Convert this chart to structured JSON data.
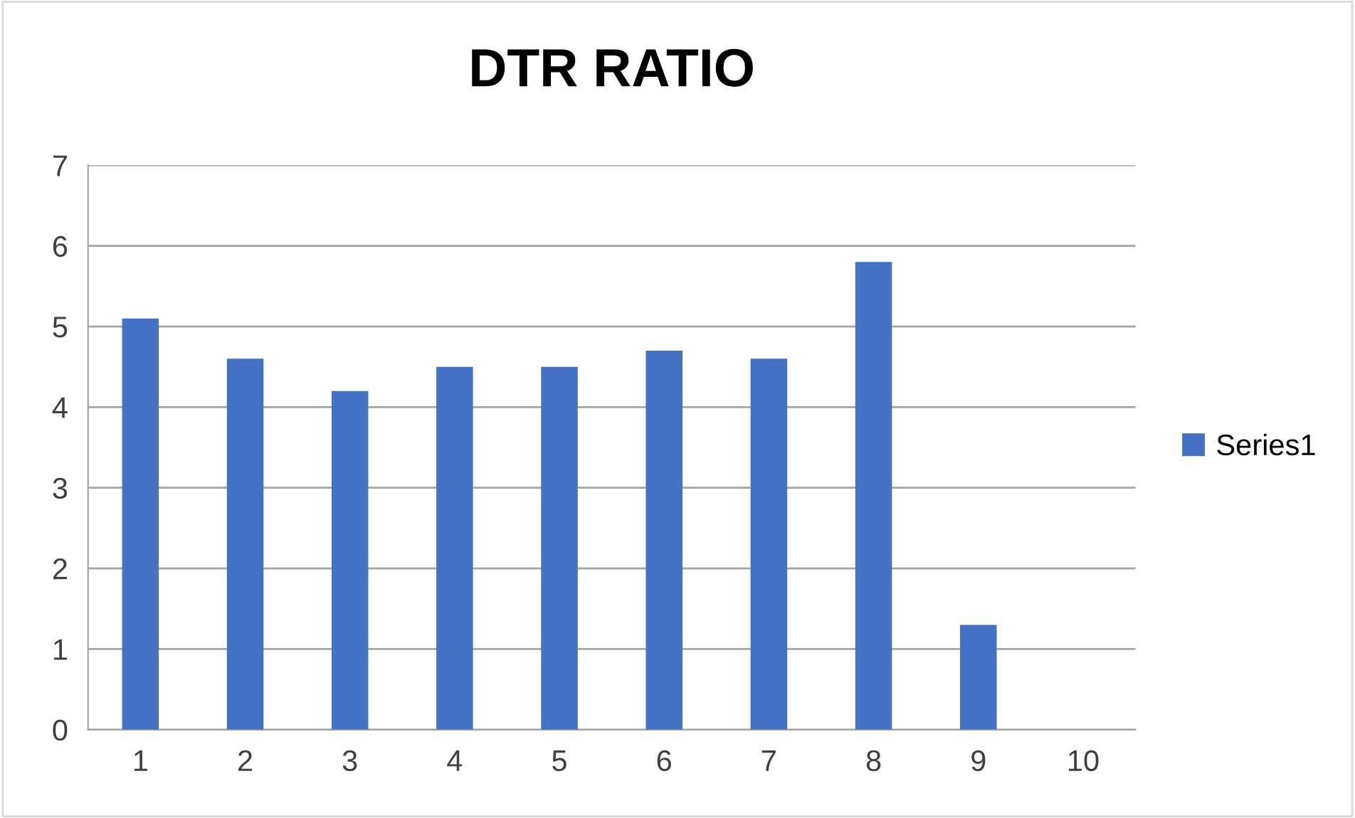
{
  "chart_data": {
    "type": "bar",
    "title": "DTR RATIO",
    "categories": [
      "1",
      "2",
      "3",
      "4",
      "5",
      "6",
      "7",
      "8",
      "9",
      "10"
    ],
    "series": [
      {
        "name": "Series1",
        "color": "#4472c4",
        "values": [
          5.1,
          4.6,
          4.2,
          4.5,
          4.5,
          4.7,
          4.6,
          5.8,
          1.3,
          null
        ]
      }
    ],
    "ylim": [
      0,
      7
    ],
    "yticks": [
      0,
      1,
      2,
      3,
      4,
      5,
      6,
      7
    ],
    "grid": "y",
    "legend": "right"
  }
}
